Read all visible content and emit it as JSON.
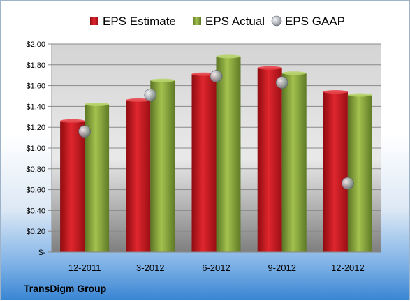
{
  "chart_data": {
    "type": "bar",
    "categories": [
      "12-2011",
      "3-2012",
      "6-2012",
      "9-2012",
      "12-2012"
    ],
    "series": [
      {
        "name": "EPS Estimate",
        "kind": "bar",
        "color": "#c0141c",
        "values": [
          1.26,
          1.46,
          1.71,
          1.77,
          1.54
        ]
      },
      {
        "name": "EPS Actual",
        "kind": "bar",
        "color": "#7a9a32",
        "values": [
          1.42,
          1.65,
          1.88,
          1.72,
          1.51
        ]
      },
      {
        "name": "EPS GAAP",
        "kind": "marker",
        "color": "#9aa0a8",
        "values": [
          1.16,
          1.51,
          1.69,
          1.63,
          0.66
        ]
      }
    ],
    "ylim": [
      0,
      2.0
    ],
    "yticks": [
      0,
      0.2,
      0.4,
      0.6,
      0.8,
      1.0,
      1.2,
      1.4,
      1.6,
      1.8,
      2.0
    ],
    "ytick_labels": [
      "$-",
      "$0.20",
      "$0.40",
      "$0.60",
      "$0.80",
      "$1.00",
      "$1.20",
      "$1.40",
      "$1.60",
      "$1.80",
      "$2.00"
    ],
    "grid": true,
    "legend_position": "top",
    "company": "TransDigm Group"
  }
}
